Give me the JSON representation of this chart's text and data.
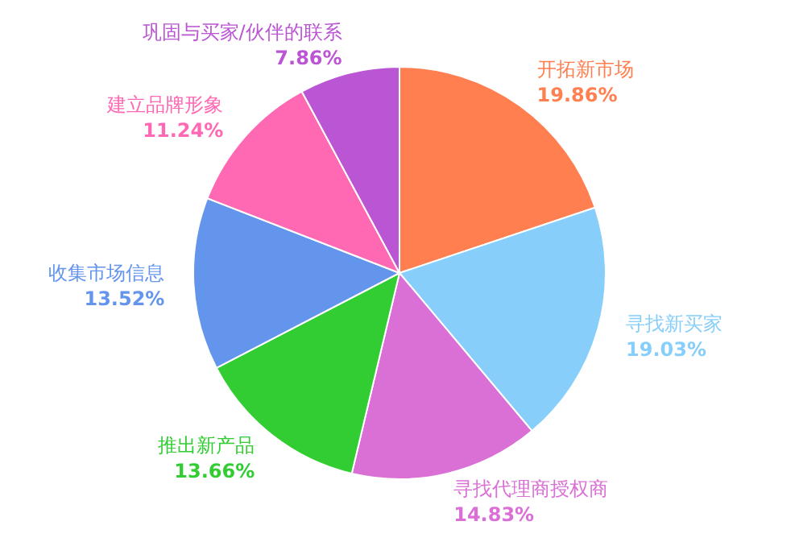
{
  "chart_data": {
    "type": "pie",
    "categories": [
      "开拓新市场",
      "寻找新买家",
      "寻找代理商授权商",
      "推出新产品",
      "收集市场信息",
      "建立品牌形象",
      "巩固与买家/伙伴的联系"
    ],
    "values": [
      19.86,
      19.03,
      14.83,
      13.66,
      13.52,
      11.24,
      7.86
    ],
    "value_labels": [
      "19.86%",
      "19.03%",
      "14.83%",
      "13.66%",
      "13.52%",
      "11.24%",
      "7.86%"
    ],
    "colors": [
      "#ff7f50",
      "#87cefa",
      "#da70d6",
      "#32cd32",
      "#6495ed",
      "#ff69b4",
      "#ba55d3"
    ]
  }
}
